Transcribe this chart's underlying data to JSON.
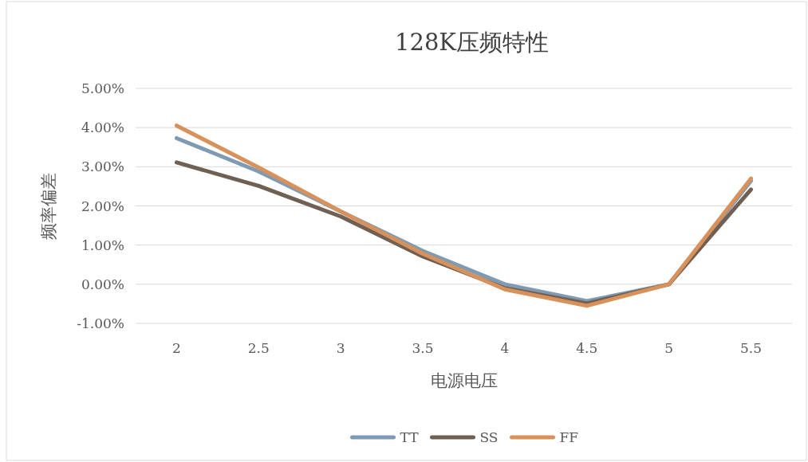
{
  "chart_data": {
    "type": "line",
    "title": "128K压频特性",
    "xlabel": "电源电压",
    "ylabel": "频率偏差",
    "categories": [
      "2",
      "2.5",
      "3",
      "3.5",
      "4",
      "4.5",
      "5",
      "5.5"
    ],
    "series": [
      {
        "name": "TT",
        "color": "#7f9bb3",
        "values": [
          3.73,
          2.88,
          1.86,
          0.85,
          0.0,
          -0.43,
          0.0,
          2.64
        ]
      },
      {
        "name": "SS",
        "color": "#705f53",
        "values": [
          3.11,
          2.51,
          1.73,
          0.71,
          -0.1,
          -0.49,
          0.0,
          2.42
        ]
      },
      {
        "name": "FF",
        "color": "#d8915a",
        "values": [
          4.05,
          2.98,
          1.86,
          0.78,
          -0.13,
          -0.55,
          0.0,
          2.7
        ]
      }
    ],
    "ylim": [
      -1,
      5
    ],
    "yticks": [
      {
        "value": -1,
        "label": "-1.00%"
      },
      {
        "value": 0,
        "label": "0.00%"
      },
      {
        "value": 1,
        "label": "1.00%"
      },
      {
        "value": 2,
        "label": "2.00%"
      },
      {
        "value": 3,
        "label": "3.00%"
      },
      {
        "value": 4,
        "label": "4.00%"
      },
      {
        "value": 5,
        "label": "5.00%"
      }
    ],
    "grid": "y",
    "legend": "bottom",
    "marker": "none",
    "line_style": "solid"
  }
}
